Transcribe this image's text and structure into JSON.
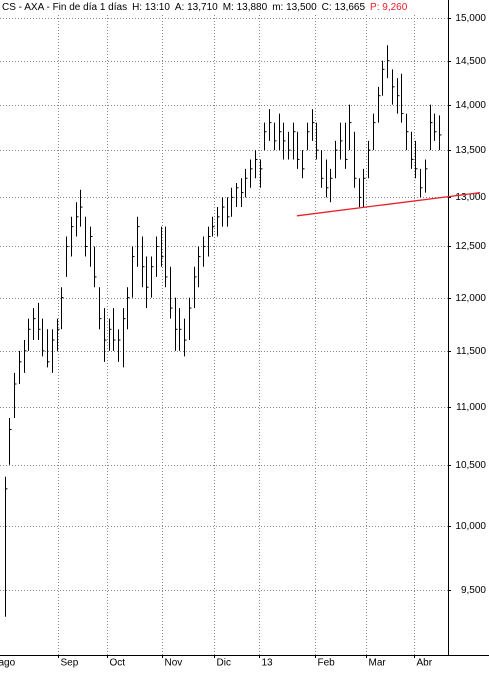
{
  "chart_data": {
    "type": "hlc",
    "header": [
      "CS - AXA - Fin de día 1 días",
      "H: 13:10",
      "A: 13,710",
      "M: 13,880",
      "m: 13,500",
      "C: 13,665"
    ],
    "header_alert": "P: 9,260",
    "log_scale": true,
    "grid": true,
    "color": "#000000",
    "xlim": [
      -1,
      93.9
    ],
    "xticks": [
      {
        "value": -1.8,
        "label": "ago"
      },
      {
        "value": 11.2,
        "label": "Sep"
      },
      {
        "value": 21.6,
        "label": "Oct"
      },
      {
        "value": 33.4,
        "label": "Nov"
      },
      {
        "value": 44.3,
        "label": "Dic"
      },
      {
        "value": 53.9,
        "label": "13"
      },
      {
        "value": 65.7,
        "label": "Feb"
      },
      {
        "value": 76.6,
        "label": "Mar"
      },
      {
        "value": 86.6,
        "label": "Abr"
      }
    ],
    "ylim": [
      9020,
      15220
    ],
    "yticks": [
      {
        "value": 9500,
        "label": "9,500"
      },
      {
        "value": 10000,
        "label": "10,000"
      },
      {
        "value": 10500,
        "label": "10,500"
      },
      {
        "value": 11000,
        "label": "11,000"
      },
      {
        "value": 11500,
        "label": "11,500"
      },
      {
        "value": 12000,
        "label": "12,000"
      },
      {
        "value": 12500,
        "label": "12,500"
      },
      {
        "value": 13000,
        "label": "13,000"
      },
      {
        "value": 13500,
        "label": "13,500"
      },
      {
        "value": 14000,
        "label": "14,000"
      },
      {
        "value": 14500,
        "label": "14,500"
      },
      {
        "value": 15000,
        "label": "15,000"
      }
    ],
    "high": [
      10400,
      10900,
      11300,
      11500,
      11600,
      11800,
      11900,
      11950,
      11800,
      11700,
      11700,
      11800,
      12100,
      12600,
      12800,
      12950,
      13080,
      12800,
      12700,
      12500,
      12100,
      11900,
      11800,
      11900,
      11700,
      11900,
      12100,
      12500,
      12800,
      12600,
      12400,
      12400,
      12600,
      12700,
      12700,
      12300,
      12000,
      11900,
      11800,
      12000,
      12300,
      12500,
      12600,
      12700,
      12800,
      12900,
      13000,
      13000,
      13100,
      13150,
      13200,
      13300,
      13400,
      13500,
      13400,
      13800,
      13950,
      13800,
      13900,
      13800,
      13700,
      13800,
      13700,
      13500,
      13800,
      13950,
      13800,
      13500,
      13400,
      13300,
      13600,
      13800,
      13800,
      14000,
      13700,
      13200,
      13300,
      13600,
      13900,
      14200,
      14500,
      14680,
      14400,
      14300,
      14350,
      13900,
      13700,
      13600,
      13300,
      13400,
      14000,
      13900,
      13880
    ],
    "low": [
      9300,
      10500,
      10900,
      11200,
      11300,
      11500,
      11600,
      11600,
      11450,
      11350,
      11300,
      11500,
      11700,
      12200,
      12400,
      12600,
      12700,
      12400,
      12300,
      12100,
      11700,
      11400,
      11500,
      11500,
      11400,
      11350,
      11700,
      12000,
      12300,
      12100,
      11900,
      12000,
      12200,
      12300,
      12100,
      11800,
      11500,
      11500,
      11450,
      11600,
      11900,
      12100,
      12300,
      12400,
      12600,
      12600,
      12700,
      12700,
      12800,
      12900,
      12900,
      13000,
      13100,
      13200,
      13100,
      13500,
      13600,
      13500,
      13500,
      13400,
      13400,
      13400,
      13300,
      13200,
      13500,
      13600,
      13400,
      13100,
      13000,
      12950,
      13200,
      13400,
      13300,
      13500,
      13100,
      12900,
      12900,
      13200,
      13500,
      13800,
      14100,
      14300,
      14000,
      13900,
      13800,
      13500,
      13300,
      13200,
      13000,
      13050,
      13500,
      13600,
      13500
    ],
    "close": [
      10300,
      10800,
      11200,
      11400,
      11500,
      11700,
      11800,
      11700,
      11500,
      11400,
      11600,
      11700,
      12000,
      12500,
      12700,
      12800,
      12900,
      12500,
      12600,
      12200,
      11800,
      11600,
      11700,
      11600,
      11600,
      11800,
      12000,
      12400,
      12700,
      12300,
      12100,
      12300,
      12500,
      12400,
      12200,
      11900,
      11700,
      11700,
      11600,
      11900,
      12200,
      12400,
      12500,
      12600,
      12700,
      12800,
      12900,
      12800,
      13000,
      13100,
      13050,
      13200,
      13300,
      13400,
      13300,
      13700,
      13800,
      13600,
      13700,
      13600,
      13500,
      13700,
      13400,
      13300,
      13700,
      13800,
      13500,
      13200,
      13100,
      13200,
      13500,
      13600,
      13400,
      13800,
      13200,
      13000,
      13200,
      13500,
      13800,
      14100,
      14400,
      14500,
      14200,
      14100,
      13900,
      13700,
      13400,
      13300,
      13100,
      13300,
      13800,
      13700,
      13665
    ],
    "trendline": {
      "x": [
        61.9,
        100.7
      ],
      "values": [
        12810,
        13050
      ],
      "color": "#e8202a"
    }
  }
}
